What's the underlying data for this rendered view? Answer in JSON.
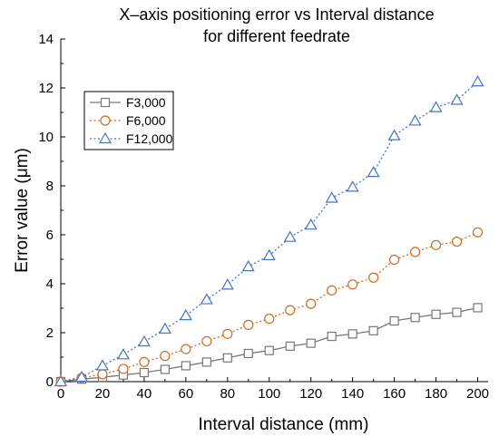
{
  "chart_data": {
    "type": "line",
    "title_lines": [
      "X–axis positioning error vs Interval distance",
      "for different feedrate"
    ],
    "xlabel": "Interval distance (mm)",
    "ylabel": "Error value (μm)",
    "xlim": [
      0,
      205
    ],
    "ylim": [
      0,
      14
    ],
    "xticks": [
      0,
      20,
      40,
      60,
      80,
      100,
      120,
      140,
      160,
      180,
      200
    ],
    "yticks": [
      0,
      2,
      4,
      6,
      8,
      10,
      12,
      14
    ],
    "grid": false,
    "legend_position": "top-left",
    "series": [
      {
        "name": "F3,000",
        "color": "#777777",
        "marker": "square",
        "line_style": "solid",
        "x": [
          0,
          10,
          20,
          30,
          40,
          50,
          60,
          70,
          80,
          90,
          100,
          110,
          120,
          130,
          140,
          150,
          160,
          170,
          180,
          190,
          200
        ],
        "y": [
          0,
          0.1,
          0.18,
          0.27,
          0.37,
          0.5,
          0.65,
          0.8,
          0.97,
          1.15,
          1.27,
          1.45,
          1.57,
          1.85,
          1.95,
          2.08,
          2.48,
          2.62,
          2.75,
          2.83,
          3.02
        ]
      },
      {
        "name": "F6,000",
        "color": "#D2691E",
        "marker": "circle",
        "line_style": "dotted",
        "x": [
          0,
          10,
          20,
          30,
          40,
          50,
          60,
          70,
          80,
          90,
          100,
          110,
          120,
          130,
          140,
          150,
          160,
          170,
          180,
          190,
          200
        ],
        "y": [
          0,
          0.15,
          0.3,
          0.52,
          0.8,
          1.05,
          1.33,
          1.65,
          1.95,
          2.32,
          2.57,
          2.92,
          3.18,
          3.73,
          3.97,
          4.25,
          4.98,
          5.3,
          5.58,
          5.72,
          6.1
        ]
      },
      {
        "name": "F12,000",
        "color": "#4472C4",
        "marker": "triangle",
        "line_style": "dotted",
        "x": [
          0,
          10,
          20,
          30,
          40,
          50,
          60,
          70,
          80,
          90,
          100,
          110,
          120,
          130,
          140,
          150,
          160,
          170,
          180,
          190,
          200
        ],
        "y": [
          0,
          0.18,
          0.65,
          1.1,
          1.63,
          2.15,
          2.7,
          3.35,
          3.95,
          4.7,
          5.15,
          5.9,
          6.4,
          7.5,
          7.95,
          8.55,
          10.05,
          10.65,
          11.2,
          11.5,
          12.25
        ]
      }
    ]
  }
}
